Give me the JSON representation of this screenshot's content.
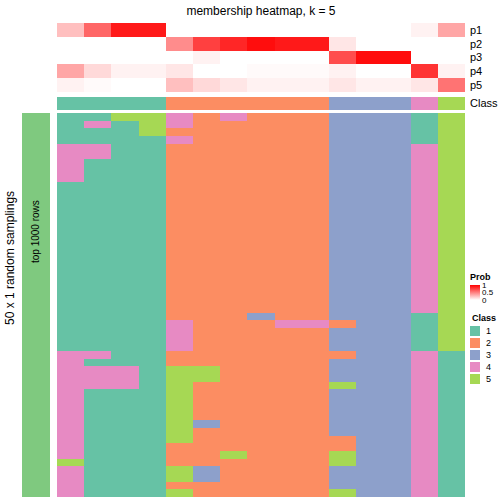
{
  "chart_data": {
    "type": "heatmap",
    "title": "membership heatmap, k = 5",
    "row_labels": [
      "p1",
      "p2",
      "p3",
      "p4",
      "p5"
    ],
    "class_row_label": "Class",
    "left_label": "50 x 1 random samplings",
    "side_label": "top 1000 rows",
    "side_color": "#7FC97F",
    "tick_labels": false,
    "probability": [
      [
        0.25,
        0.6,
        0.9,
        0.9,
        0,
        0,
        0,
        0,
        0,
        0,
        0,
        0,
        0,
        0.05,
        0.35
      ],
      [
        0,
        0,
        0,
        0,
        0.45,
        0.75,
        0.85,
        0.95,
        0.9,
        0.9,
        0.1,
        0,
        0,
        0,
        0
      ],
      [
        0,
        0,
        0,
        0,
        0,
        0.05,
        0,
        0,
        0,
        0,
        0.7,
        0.95,
        0.95,
        0,
        0
      ],
      [
        0.35,
        0.15,
        0.05,
        0.05,
        0.1,
        0,
        0,
        0.02,
        0.02,
        0.02,
        0.05,
        0,
        0,
        0.8,
        0.05
      ],
      [
        0.05,
        0.02,
        0,
        0,
        0.25,
        0.15,
        0.1,
        0.05,
        0.05,
        0.05,
        0.1,
        0.05,
        0.05,
        0.1,
        0.55
      ]
    ],
    "class_row": [
      1,
      1,
      1,
      1,
      2,
      2,
      2,
      2,
      2,
      2,
      3,
      3,
      3,
      4,
      5
    ],
    "membership": [
      [
        1,
        1,
        5,
        5,
        4,
        2,
        4,
        2,
        2,
        2,
        3,
        3,
        3,
        1,
        5
      ],
      [
        1,
        4,
        1,
        5,
        4,
        2,
        2,
        2,
        2,
        2,
        3,
        3,
        3,
        1,
        5
      ],
      [
        1,
        1,
        1,
        5,
        2,
        2,
        2,
        2,
        2,
        2,
        3,
        3,
        3,
        1,
        5
      ],
      [
        1,
        1,
        1,
        1,
        4,
        2,
        2,
        2,
        2,
        2,
        3,
        3,
        3,
        1,
        5
      ],
      [
        4,
        4,
        1,
        1,
        2,
        2,
        2,
        2,
        2,
        2,
        3,
        3,
        3,
        4,
        5
      ],
      [
        4,
        4,
        1,
        1,
        2,
        2,
        2,
        2,
        2,
        2,
        3,
        3,
        3,
        4,
        5
      ],
      [
        4,
        1,
        1,
        1,
        2,
        2,
        2,
        2,
        2,
        2,
        3,
        3,
        3,
        4,
        5
      ],
      [
        4,
        1,
        1,
        1,
        2,
        2,
        2,
        2,
        2,
        2,
        3,
        3,
        3,
        4,
        5
      ],
      [
        4,
        1,
        1,
        1,
        2,
        2,
        2,
        2,
        2,
        2,
        3,
        3,
        3,
        4,
        5
      ],
      [
        1,
        1,
        1,
        1,
        2,
        2,
        2,
        2,
        2,
        2,
        3,
        3,
        3,
        4,
        5
      ],
      [
        1,
        1,
        1,
        1,
        2,
        2,
        2,
        2,
        2,
        2,
        3,
        3,
        3,
        4,
        5
      ],
      [
        1,
        1,
        1,
        1,
        2,
        2,
        2,
        2,
        2,
        2,
        3,
        3,
        3,
        4,
        5
      ],
      [
        1,
        1,
        1,
        1,
        2,
        2,
        2,
        2,
        2,
        2,
        3,
        3,
        3,
        4,
        5
      ],
      [
        1,
        1,
        1,
        1,
        2,
        2,
        2,
        2,
        2,
        2,
        3,
        3,
        3,
        4,
        5
      ],
      [
        1,
        1,
        1,
        1,
        2,
        2,
        2,
        2,
        2,
        2,
        3,
        3,
        3,
        4,
        5
      ],
      [
        1,
        1,
        1,
        1,
        2,
        2,
        2,
        2,
        2,
        2,
        3,
        3,
        3,
        4,
        5
      ],
      [
        1,
        1,
        1,
        1,
        2,
        2,
        2,
        2,
        2,
        2,
        3,
        3,
        3,
        4,
        5
      ],
      [
        1,
        1,
        1,
        1,
        2,
        2,
        2,
        2,
        2,
        2,
        3,
        3,
        3,
        4,
        5
      ],
      [
        1,
        1,
        1,
        1,
        2,
        2,
        2,
        2,
        2,
        2,
        3,
        3,
        3,
        4,
        5
      ],
      [
        1,
        1,
        1,
        1,
        2,
        2,
        2,
        2,
        2,
        2,
        3,
        3,
        3,
        4,
        5
      ],
      [
        1,
        1,
        1,
        1,
        2,
        2,
        2,
        2,
        2,
        2,
        3,
        3,
        3,
        4,
        5
      ],
      [
        1,
        1,
        1,
        1,
        2,
        2,
        2,
        2,
        2,
        2,
        3,
        3,
        3,
        4,
        5
      ],
      [
        1,
        1,
        1,
        1,
        2,
        2,
        2,
        2,
        2,
        2,
        3,
        3,
        3,
        4,
        5
      ],
      [
        1,
        1,
        1,
        1,
        2,
        2,
        2,
        2,
        2,
        2,
        3,
        3,
        3,
        4,
        5
      ],
      [
        1,
        1,
        1,
        1,
        2,
        2,
        2,
        2,
        2,
        2,
        3,
        3,
        3,
        4,
        5
      ],
      [
        1,
        1,
        1,
        1,
        2,
        2,
        2,
        2,
        2,
        2,
        3,
        3,
        3,
        4,
        5
      ],
      [
        1,
        1,
        1,
        1,
        2,
        2,
        2,
        3,
        2,
        2,
        3,
        3,
        3,
        1,
        5
      ],
      [
        1,
        1,
        1,
        1,
        4,
        2,
        2,
        2,
        4,
        4,
        2,
        3,
        3,
        1,
        5
      ],
      [
        1,
        1,
        1,
        1,
        4,
        2,
        2,
        2,
        2,
        2,
        3,
        3,
        3,
        1,
        5
      ],
      [
        1,
        1,
        1,
        1,
        4,
        2,
        2,
        2,
        2,
        2,
        3,
        3,
        3,
        1,
        5
      ],
      [
        1,
        1,
        1,
        1,
        4,
        2,
        2,
        2,
        2,
        2,
        3,
        3,
        3,
        1,
        5
      ],
      [
        4,
        4,
        1,
        1,
        2,
        2,
        2,
        2,
        2,
        2,
        2,
        3,
        3,
        4,
        1
      ],
      [
        4,
        1,
        1,
        1,
        2,
        2,
        2,
        2,
        2,
        2,
        3,
        3,
        3,
        4,
        1
      ],
      [
        4,
        4,
        4,
        1,
        5,
        5,
        2,
        2,
        2,
        2,
        3,
        3,
        3,
        4,
        1
      ],
      [
        4,
        4,
        4,
        1,
        5,
        5,
        2,
        2,
        2,
        2,
        3,
        3,
        3,
        4,
        1
      ],
      [
        4,
        4,
        4,
        1,
        5,
        2,
        2,
        2,
        2,
        2,
        5,
        3,
        3,
        4,
        1
      ],
      [
        4,
        1,
        1,
        1,
        5,
        2,
        2,
        2,
        2,
        2,
        3,
        3,
        3,
        4,
        1
      ],
      [
        4,
        1,
        1,
        1,
        5,
        2,
        2,
        2,
        2,
        2,
        3,
        3,
        3,
        4,
        1
      ],
      [
        4,
        1,
        1,
        1,
        5,
        2,
        2,
        2,
        2,
        2,
        3,
        3,
        3,
        4,
        1
      ],
      [
        4,
        1,
        1,
        1,
        5,
        2,
        2,
        2,
        2,
        2,
        3,
        3,
        3,
        4,
        1
      ],
      [
        4,
        1,
        1,
        1,
        5,
        3,
        2,
        2,
        2,
        2,
        3,
        3,
        3,
        4,
        1
      ],
      [
        4,
        1,
        1,
        1,
        5,
        2,
        2,
        2,
        2,
        2,
        3,
        3,
        3,
        4,
        1
      ],
      [
        4,
        1,
        1,
        1,
        5,
        2,
        2,
        2,
        2,
        2,
        2,
        3,
        3,
        4,
        1
      ],
      [
        4,
        1,
        1,
        1,
        2,
        2,
        2,
        2,
        2,
        2,
        2,
        3,
        3,
        4,
        1
      ],
      [
        4,
        1,
        1,
        1,
        2,
        2,
        5,
        2,
        2,
        2,
        5,
        3,
        3,
        4,
        1
      ],
      [
        5,
        1,
        1,
        1,
        2,
        2,
        2,
        2,
        2,
        2,
        5,
        3,
        3,
        4,
        1
      ],
      [
        4,
        1,
        1,
        1,
        5,
        3,
        2,
        2,
        2,
        2,
        3,
        3,
        3,
        4,
        1
      ],
      [
        4,
        1,
        1,
        1,
        5,
        3,
        2,
        2,
        2,
        2,
        3,
        3,
        3,
        4,
        1
      ],
      [
        4,
        1,
        1,
        1,
        2,
        2,
        2,
        2,
        2,
        2,
        3,
        3,
        3,
        4,
        1
      ],
      [
        4,
        1,
        1,
        1,
        5,
        2,
        2,
        2,
        2,
        2,
        5,
        3,
        3,
        4,
        1
      ]
    ],
    "class_legend_title": "Class",
    "classes": [
      1,
      2,
      3,
      4,
      5
    ],
    "colors": [
      "#66C2A5",
      "#FC8D62",
      "#8DA0CB",
      "#E78AC3",
      "#A6D854"
    ],
    "colorbar": {
      "title": "Prob",
      "range": [
        0,
        1
      ],
      "ticks": [
        0,
        0.5,
        1
      ],
      "colors": [
        "#FFFFFF",
        "#FF0000"
      ]
    }
  }
}
